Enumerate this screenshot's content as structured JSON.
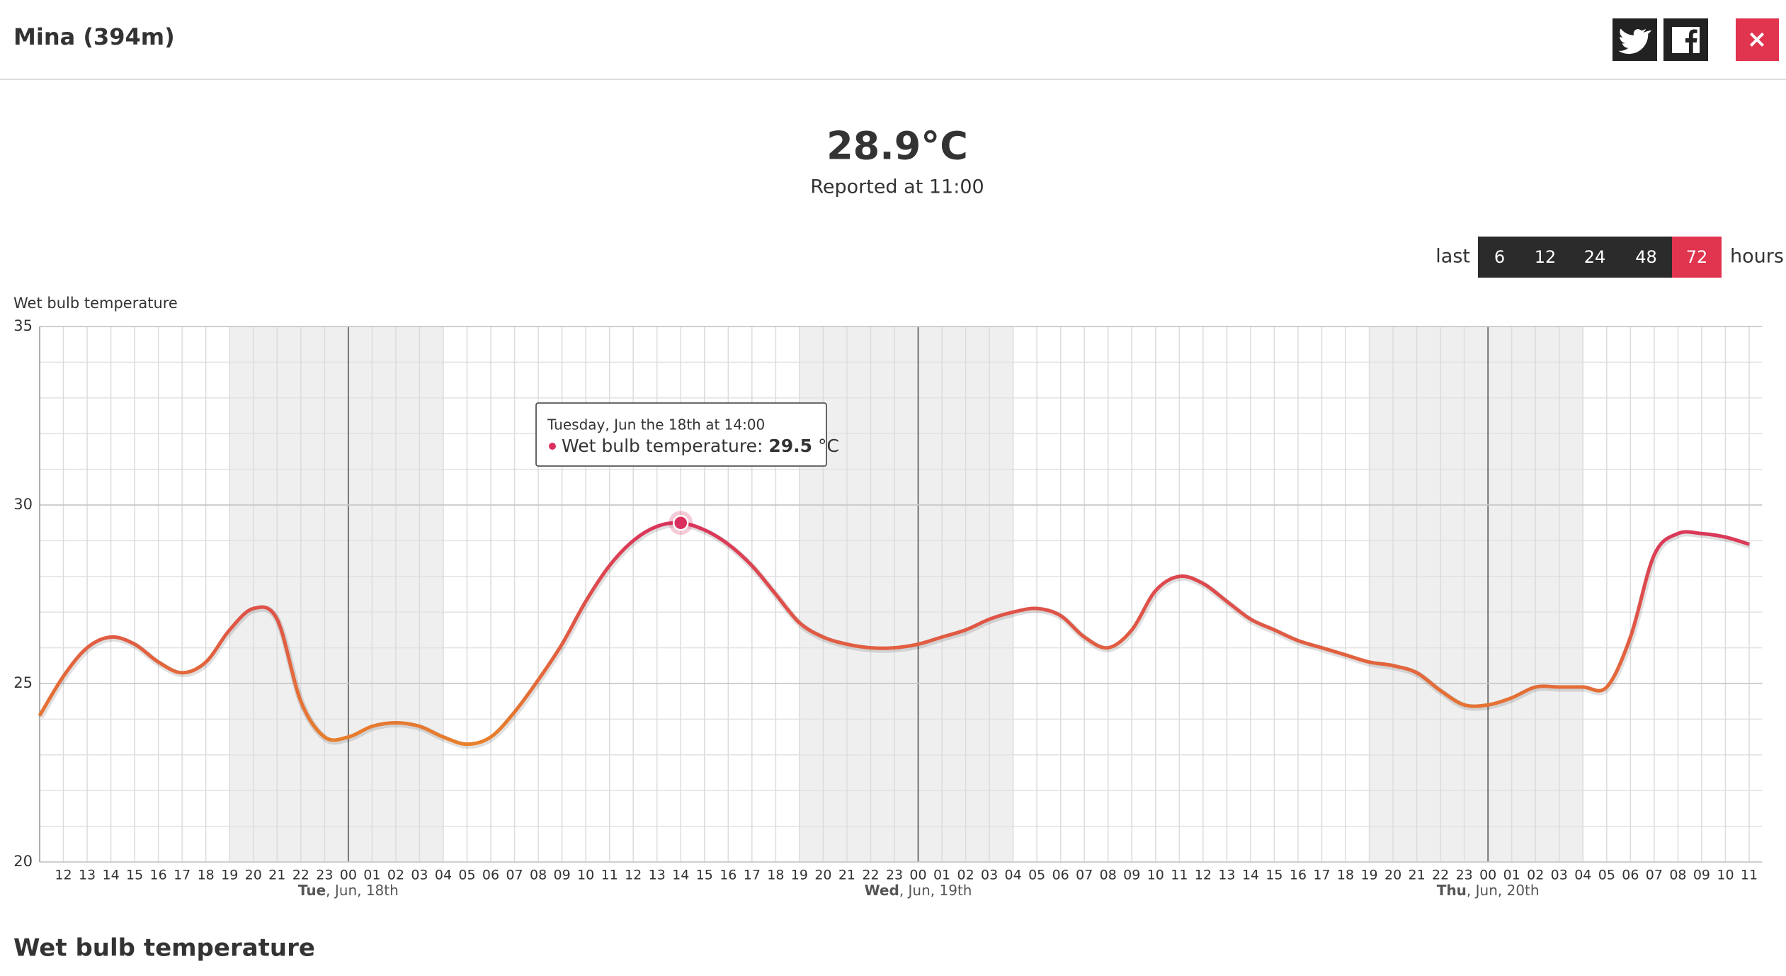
{
  "header": {
    "title": "Mina (394m)",
    "close": "×"
  },
  "current": {
    "value": "28.9°C",
    "reported": "Reported at 11:00"
  },
  "range": {
    "prefix": "last",
    "options": [
      "6",
      "12",
      "24",
      "48",
      "72"
    ],
    "active": 4,
    "suffix": "hours"
  },
  "section_title": "Wet bulb temperature",
  "chart_data": {
    "type": "line",
    "y_axis_label": "Wet bulb temperature",
    "series_name": "Wet bulb temperature",
    "categories": [
      null,
      "12",
      "13",
      "14",
      "15",
      "16",
      "17",
      "18",
      "19",
      "20",
      "21",
      "22",
      "23",
      "00",
      "01",
      "02",
      "03",
      "04",
      "05",
      "06",
      "07",
      "08",
      "09",
      "10",
      "11",
      "12",
      "13",
      "14",
      "15",
      "16",
      "17",
      "18",
      "19",
      "20",
      "21",
      "22",
      "23",
      "00",
      "01",
      "02",
      "03",
      "04",
      "05",
      "06",
      "07",
      "08",
      "09",
      "10",
      "11",
      "12",
      "13",
      "14",
      "15",
      "16",
      "17",
      "18",
      "19",
      "20",
      "21",
      "22",
      "23",
      "00",
      "01",
      "02",
      "03",
      "04",
      "05",
      "06",
      "07",
      "08",
      "09",
      "10",
      "11"
    ],
    "values": [
      24.1,
      25.2,
      26.0,
      26.3,
      26.1,
      25.6,
      25.3,
      25.6,
      26.5,
      27.1,
      26.8,
      24.5,
      23.5,
      23.5,
      23.8,
      23.9,
      23.8,
      23.5,
      23.3,
      23.5,
      24.2,
      25.1,
      26.1,
      27.3,
      28.3,
      29.0,
      29.4,
      29.5,
      29.3,
      28.9,
      28.3,
      27.5,
      26.7,
      26.3,
      26.1,
      26.0,
      26.0,
      26.1,
      26.3,
      26.5,
      26.8,
      27.0,
      27.1,
      26.9,
      26.3,
      26.0,
      26.5,
      27.6,
      28.0,
      27.8,
      27.3,
      26.8,
      26.5,
      26.2,
      26.0,
      25.8,
      25.6,
      25.5,
      25.3,
      24.8,
      24.4,
      24.4,
      24.6,
      24.9,
      24.9,
      24.9,
      24.9,
      26.3,
      28.6,
      29.2,
      29.2,
      29.1,
      28.9
    ],
    "color_low": "#e8822a",
    "color_high": "#d9305e",
    "ylim": [
      20,
      35
    ],
    "yticks": [
      20,
      25,
      30,
      35
    ],
    "yminor_ticks": [
      21,
      22,
      23,
      24,
      26,
      27,
      28,
      29,
      31,
      32,
      33,
      34
    ],
    "night_bands": [
      [
        8,
        17
      ],
      [
        32,
        41
      ],
      [
        56,
        65
      ]
    ],
    "days": [
      {
        "index": 13,
        "weekday": "Tue",
        "date": ", Jun, 18th"
      },
      {
        "index": 37,
        "weekday": "Wed",
        "date": ", Jun, 19th"
      },
      {
        "index": 61,
        "weekday": "Thu",
        "date": ", Jun, 20th"
      }
    ],
    "tooltip": {
      "index": 27,
      "header": "Tuesday, Jun the 18th at 14:00",
      "label": "Wet bulb temperature: ",
      "unit": " °C"
    }
  }
}
